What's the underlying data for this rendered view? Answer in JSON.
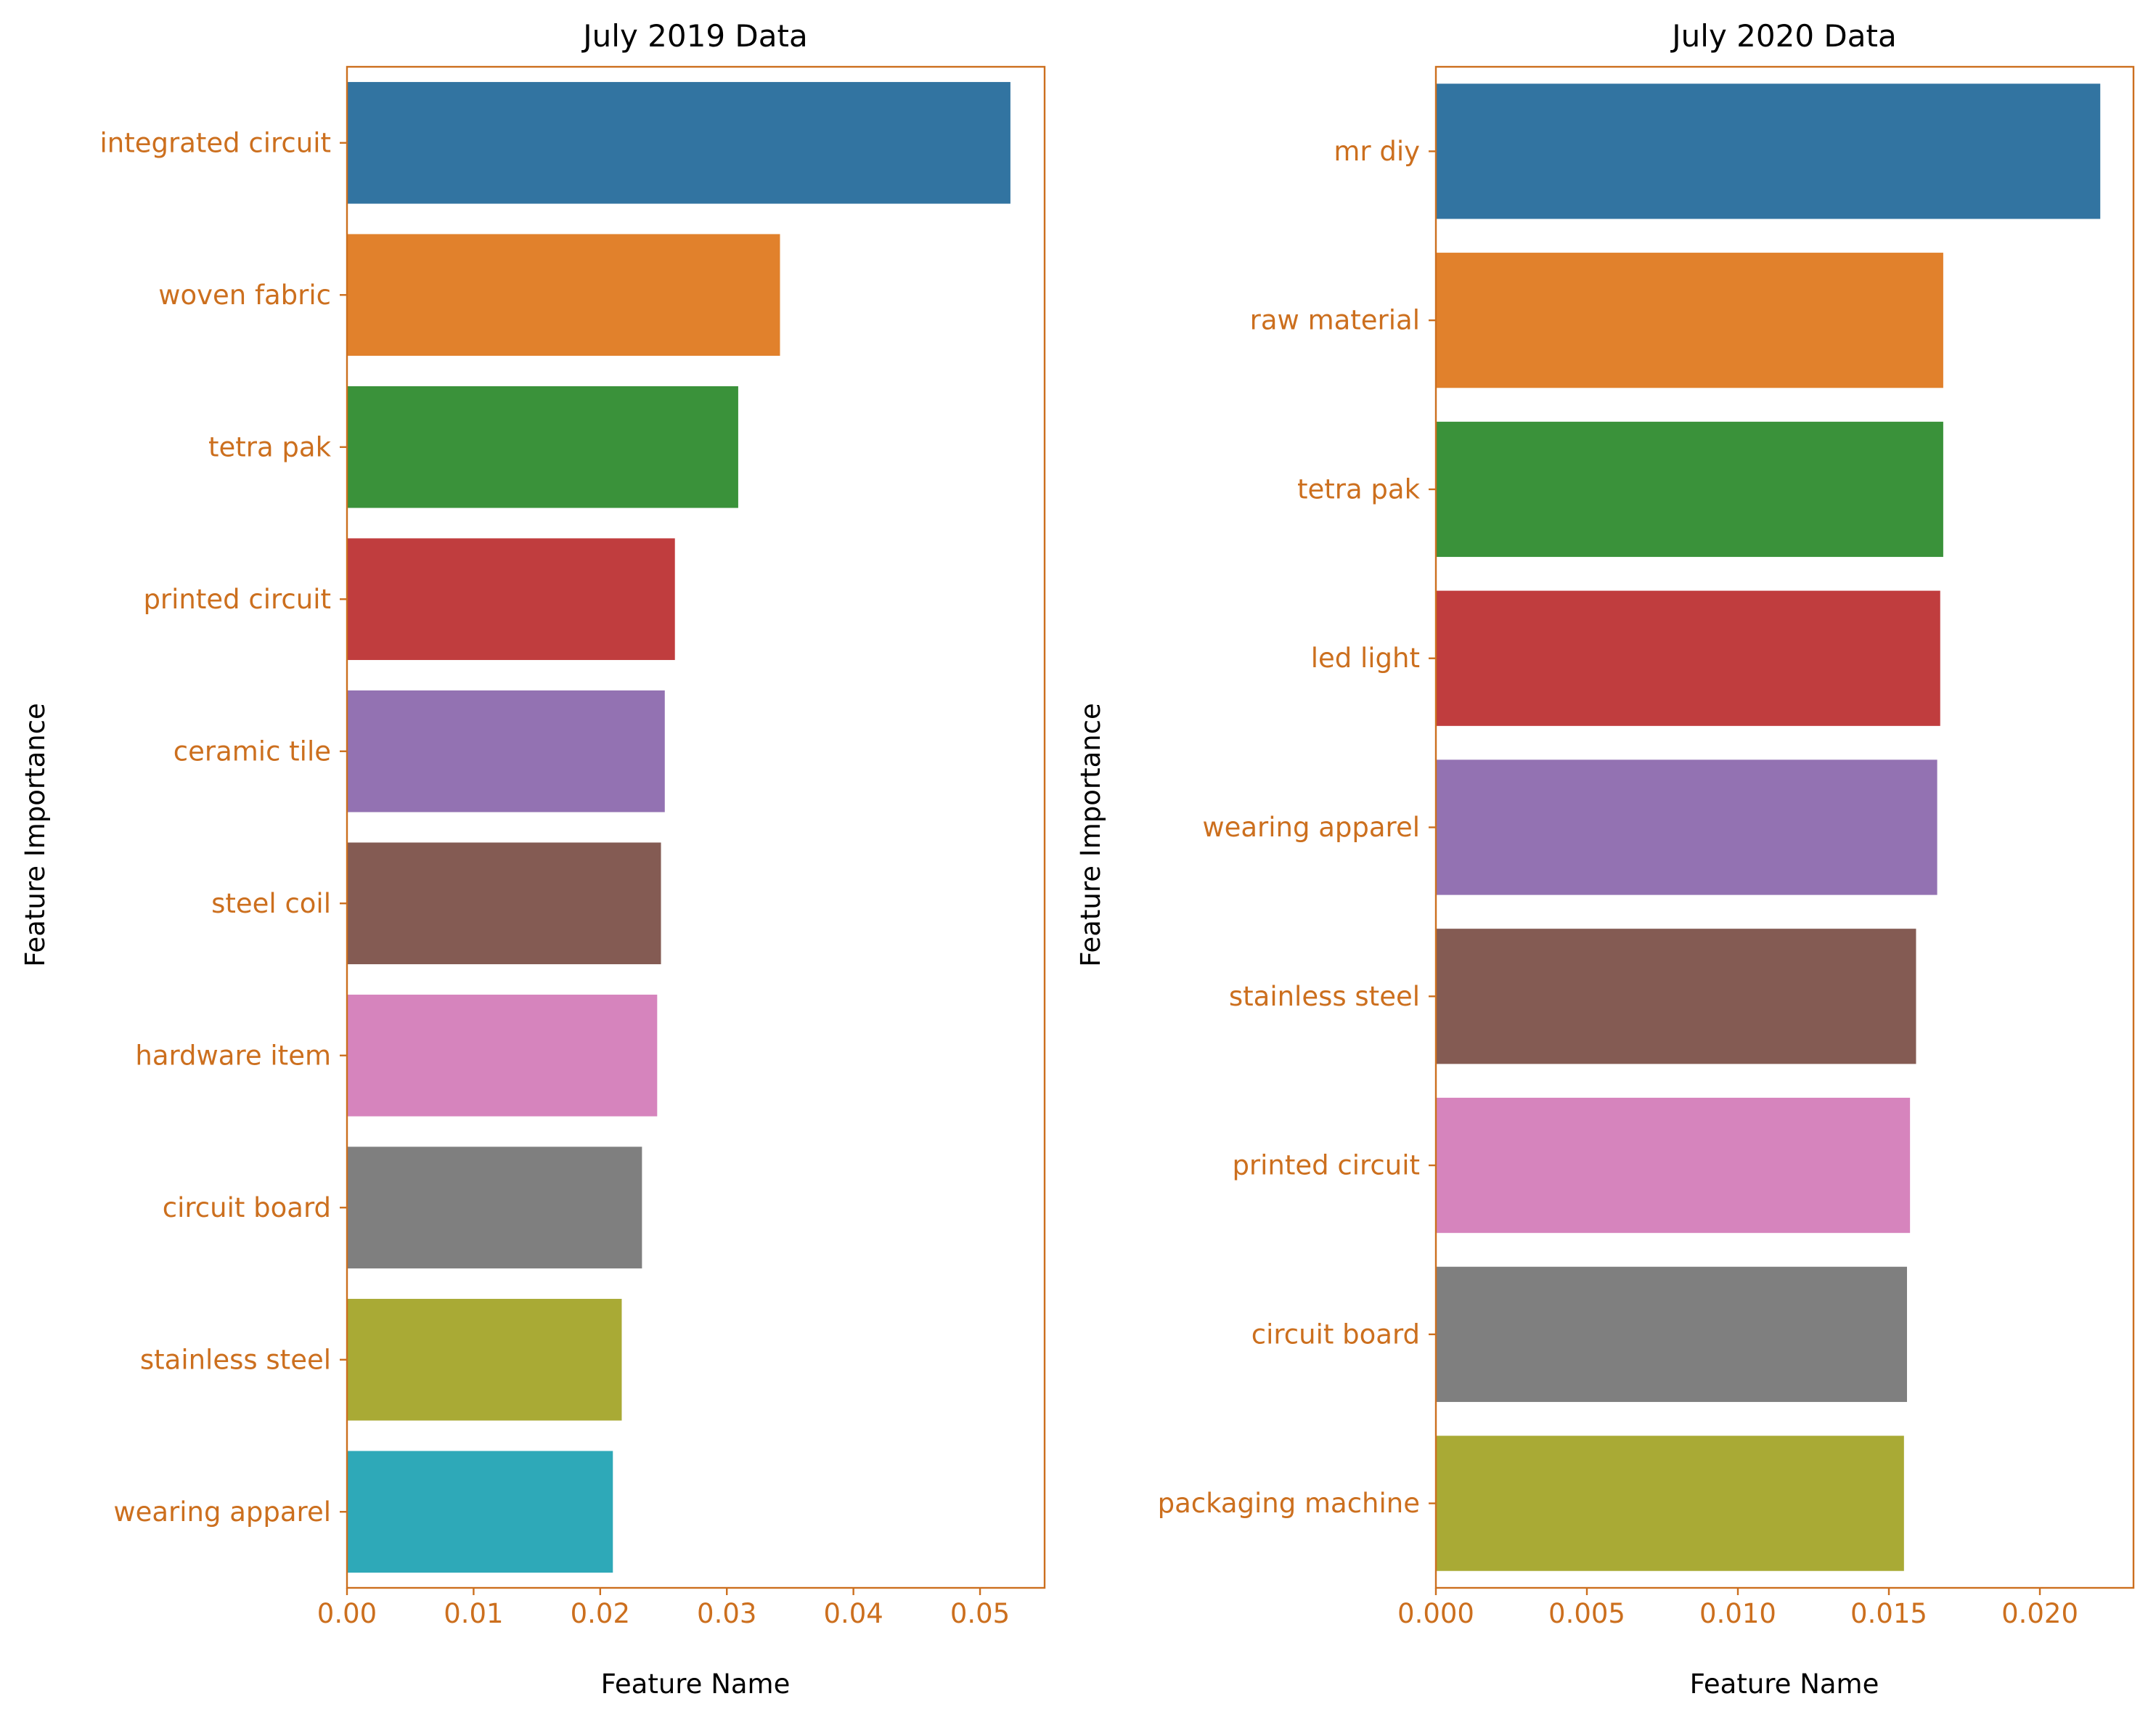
{
  "style": {
    "axis_color": "#cc6f1e",
    "tick_label_color": "#cc6f1e",
    "text_color": "#000000",
    "palette": [
      "#3274a1",
      "#e1812c",
      "#3a923a",
      "#c03d3e",
      "#9372b2",
      "#845b53",
      "#d684bd",
      "#7f7f7f",
      "#a9aa35",
      "#2ea9b8"
    ]
  },
  "chart_data": [
    {
      "type": "bar",
      "orientation": "horizontal",
      "title": "July 2019 Data",
      "xlabel": "Feature Name",
      "ylabel": "Feature Importance",
      "categories": [
        "integrated circuit",
        "woven fabric",
        "tetra pak",
        "printed circuit",
        "ceramic tile",
        "steel coil",
        "hardware item",
        "circuit board",
        "stainless steel",
        "wearing apparel"
      ],
      "values": [
        0.0524,
        0.0342,
        0.0309,
        0.0259,
        0.0251,
        0.0248,
        0.0245,
        0.0233,
        0.0217,
        0.021
      ],
      "xlim": [
        0,
        0.0551
      ],
      "xticks": [
        0.0,
        0.01,
        0.02,
        0.03,
        0.04,
        0.05
      ],
      "xtick_labels": [
        "0.00",
        "0.01",
        "0.02",
        "0.03",
        "0.04",
        "0.05"
      ],
      "grid": false,
      "legend": "none"
    },
    {
      "type": "bar",
      "orientation": "horizontal",
      "title": "July 2020 Data",
      "xlabel": "Feature Name",
      "ylabel": "Feature Importance",
      "categories": [
        "mr diy",
        "raw material",
        "tetra pak",
        "led light",
        "wearing apparel",
        "stainless steel",
        "printed circuit",
        "circuit board",
        "packaging machine"
      ],
      "values": [
        0.022,
        0.0168,
        0.0168,
        0.0167,
        0.0166,
        0.0159,
        0.0157,
        0.0156,
        0.0155
      ],
      "xlim": [
        0,
        0.0231
      ],
      "xticks": [
        0.0,
        0.005,
        0.01,
        0.015,
        0.02
      ],
      "xtick_labels": [
        "0.000",
        "0.005",
        "0.010",
        "0.015",
        "0.020"
      ],
      "grid": false,
      "legend": "none"
    }
  ]
}
